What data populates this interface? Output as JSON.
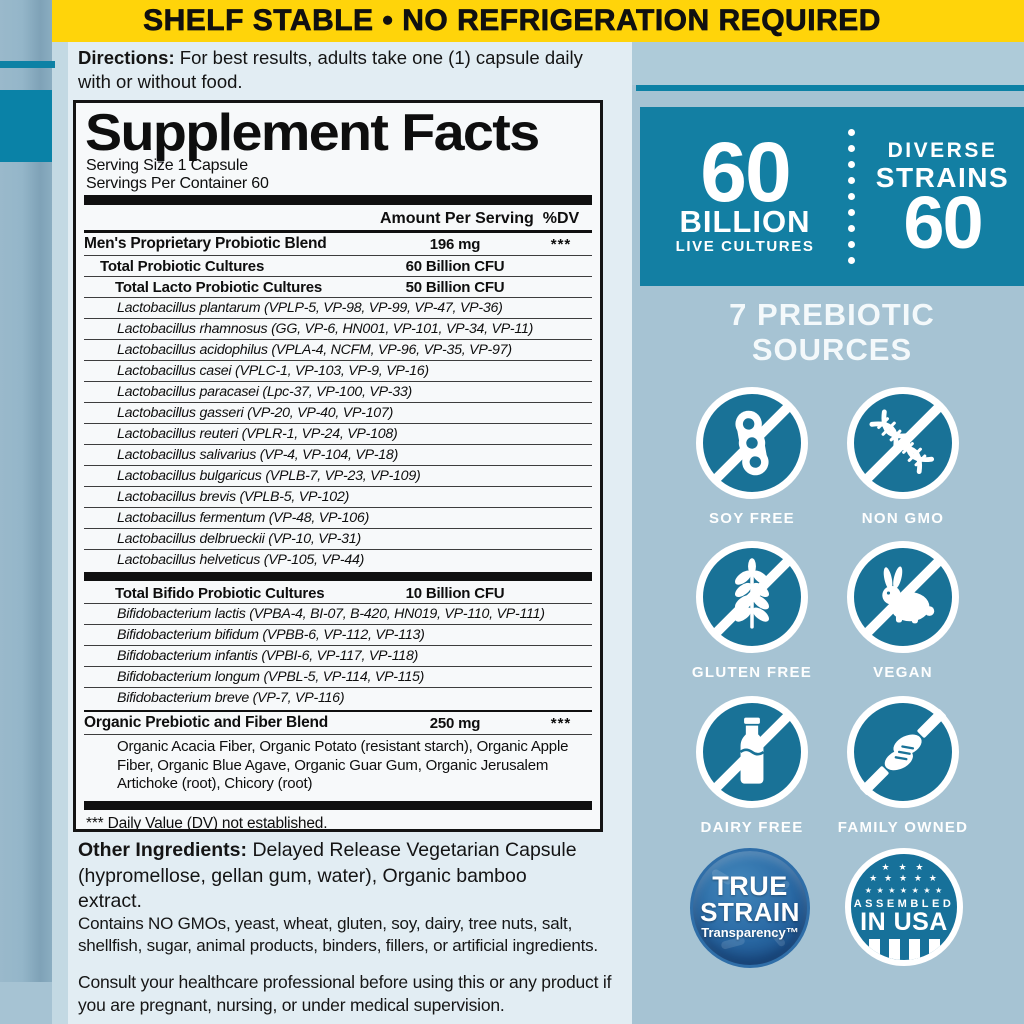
{
  "colors": {
    "banner_yellow": "#ffd40a",
    "teal": "#137fa3",
    "badge_teal": "#197297",
    "navy_badge": "#2b6ba6",
    "panel_light": "#e2edf3",
    "background_blue": "#a6c3d3"
  },
  "banner": {
    "text": "SHELF STABLE • NO REFRIGERATION REQUIRED"
  },
  "directions": {
    "label": "Directions:",
    "text": "For best results, adults take one (1) capsule daily with or without food."
  },
  "supplement": {
    "title": "Supplement Facts",
    "serving_size": "Serving Size 1 Capsule",
    "servings_per_container": "Servings Per Container 60",
    "col_amount": "Amount Per Serving",
    "col_dv": "%DV",
    "rows": [
      {
        "type": "blend",
        "name": "Men's Proprietary Probiotic Blend",
        "amount": "196 mg",
        "dv": "***"
      },
      {
        "type": "total1",
        "name": "Total Probiotic Cultures",
        "amount": "60 Billion CFU",
        "dv": ""
      },
      {
        "type": "total2",
        "name": "Total Lacto Probiotic Cultures",
        "amount": "50 Billion CFU",
        "dv": ""
      },
      {
        "type": "species",
        "name": "Lactobacillus plantarum (VPLP-5, VP-98, VP-99, VP-47, VP-36)"
      },
      {
        "type": "species",
        "name": "Lactobacillus rhamnosus (GG, VP-6, HN001, VP-101, VP-34, VP-11)"
      },
      {
        "type": "species",
        "name": "Lactobacillus acidophilus (VPLA-4, NCFM, VP-96, VP-35, VP-97)"
      },
      {
        "type": "species",
        "name": "Lactobacillus casei (VPLC-1, VP-103, VP-9, VP-16)"
      },
      {
        "type": "species",
        "name": "Lactobacillus paracasei (Lpc-37, VP-100, VP-33)"
      },
      {
        "type": "species",
        "name": "Lactobacillus gasseri (VP-20, VP-40, VP-107)"
      },
      {
        "type": "species",
        "name": "Lactobacillus reuteri (VPLR-1, VP-24, VP-108)"
      },
      {
        "type": "species",
        "name": "Lactobacillus salivarius (VP-4, VP-104, VP-18)"
      },
      {
        "type": "species",
        "name": "Lactobacillus bulgaricus (VPLB-7, VP-23, VP-109)"
      },
      {
        "type": "species",
        "name": "Lactobacillus brevis (VPLB-5, VP-102)"
      },
      {
        "type": "species",
        "name": "Lactobacillus fermentum (VP-48, VP-106)"
      },
      {
        "type": "species",
        "name": "Lactobacillus delbrueckii (VP-10, VP-31)"
      },
      {
        "type": "species",
        "name": "Lactobacillus helveticus (VP-105, VP-44)"
      },
      {
        "type": "bar"
      },
      {
        "type": "total2",
        "name": "Total Bifido Probiotic Cultures",
        "amount": "10 Billion CFU",
        "dv": ""
      },
      {
        "type": "species",
        "name": "Bifidobacterium lactis (VPBA-4, BI-07, B-420, HN019, VP-110, VP-111)"
      },
      {
        "type": "species",
        "name": "Bifidobacterium bifidum (VPBB-6, VP-112, VP-113)"
      },
      {
        "type": "species",
        "name": "Bifidobacterium infantis (VPBI-6, VP-117, VP-118)"
      },
      {
        "type": "species",
        "name": "Bifidobacterium longum (VPBL-5, VP-114, VP-115)"
      },
      {
        "type": "species",
        "name": "Bifidobacterium breve (VP-7, VP-116)"
      },
      {
        "type": "rule"
      },
      {
        "type": "blend",
        "name": "Organic Prebiotic and Fiber Blend",
        "amount": "250 mg",
        "dv": "***"
      },
      {
        "type": "ingredients",
        "name": "Organic Acacia Fiber, Organic Potato (resistant starch), Organic Apple Fiber, Organic Blue Agave, Organic Guar Gum, Organic Jerusalem Artichoke (root), Chicory (root)"
      },
      {
        "type": "bar"
      },
      {
        "type": "footnote",
        "name": "*** Daily Value (DV) not established."
      }
    ]
  },
  "other_ingredients": {
    "label": "Other Ingredients:",
    "text": "Delayed Release Vegetarian Capsule (hypromellose, gellan gum, water), Organic bamboo extract."
  },
  "contains": "Contains NO GMOs, yeast, wheat, gluten, soy, dairy, tree nuts, salt, shellfish, sugar, animal products, binders, fillers, or artificial ingredients.",
  "consult": "Consult your healthcare professional before using this or any product if you are pregnant, nursing, or under medical supervision.",
  "potency": {
    "count": "60",
    "unit": "BILLION",
    "sub": "LIVE CULTURES",
    "right_line1": "DIVERSE",
    "right_line2": "STRAINS",
    "right_count": "60"
  },
  "prebiotic_heading": {
    "line1": "7 PREBIOTIC",
    "line2": "SOURCES"
  },
  "badges": [
    {
      "label": "SOY FREE",
      "icon": "soy-free-icon"
    },
    {
      "label": "NON GMO",
      "icon": "non-gmo-icon"
    },
    {
      "label": "GLUTEN FREE",
      "icon": "gluten-free-icon"
    },
    {
      "label": "VEGAN",
      "icon": "vegan-icon"
    },
    {
      "label": "DAIRY FREE",
      "icon": "dairy-free-icon"
    },
    {
      "label": "FAMILY OWNED",
      "icon": "family-owned-icon"
    }
  ],
  "true_strain": {
    "line1": "TRUE",
    "line2": "STRAIN",
    "line3": "Transparency™"
  },
  "usa_badge": {
    "stars1": "★ ★ ★",
    "stars2": "★ ★ ★ ★ ★",
    "stars3": "★ ★ ★ ★ ★ ★ ★",
    "line1": "ASSEMBLED",
    "line2": "IN USA"
  }
}
